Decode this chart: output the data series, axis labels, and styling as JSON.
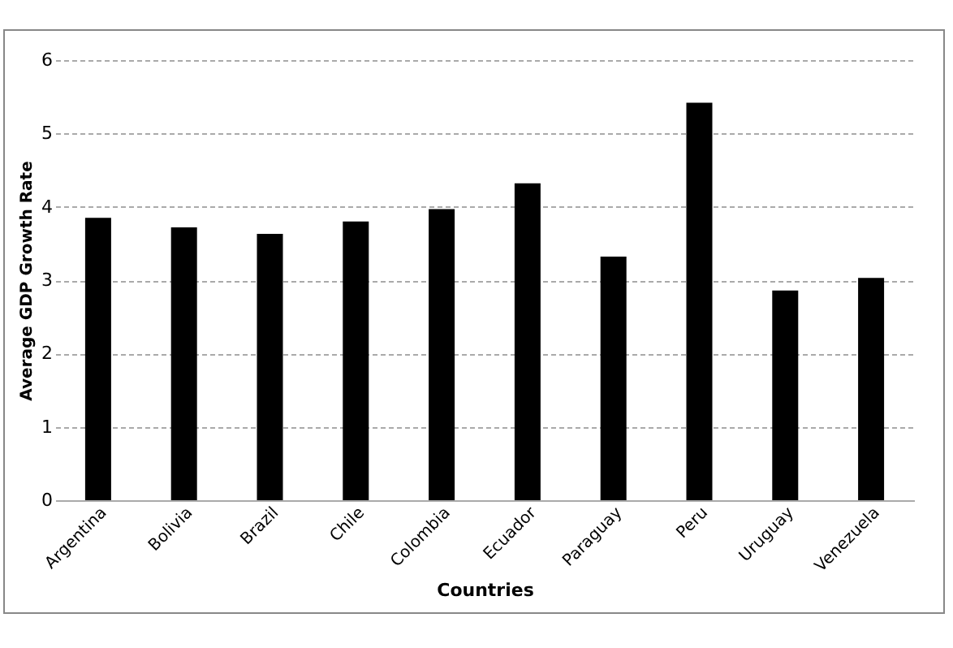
{
  "chart_data": {
    "type": "bar",
    "xlabel": "Countries",
    "ylabel": "Average GDP Growth  Rate",
    "categories": [
      "Argentina",
      "Bolivia",
      "Brazil",
      "Chile",
      "Colombia",
      "Ecuador",
      "Paraguay",
      "Peru",
      "Uruguay",
      "Venezuela"
    ],
    "values": [
      3.85,
      3.72,
      3.63,
      3.8,
      3.97,
      4.32,
      3.32,
      5.42,
      2.86,
      3.03
    ],
    "color": "#000000",
    "ylim": [
      0,
      6
    ],
    "yticks": [
      0,
      1,
      2,
      3,
      4,
      5,
      6
    ],
    "grid": "y"
  }
}
